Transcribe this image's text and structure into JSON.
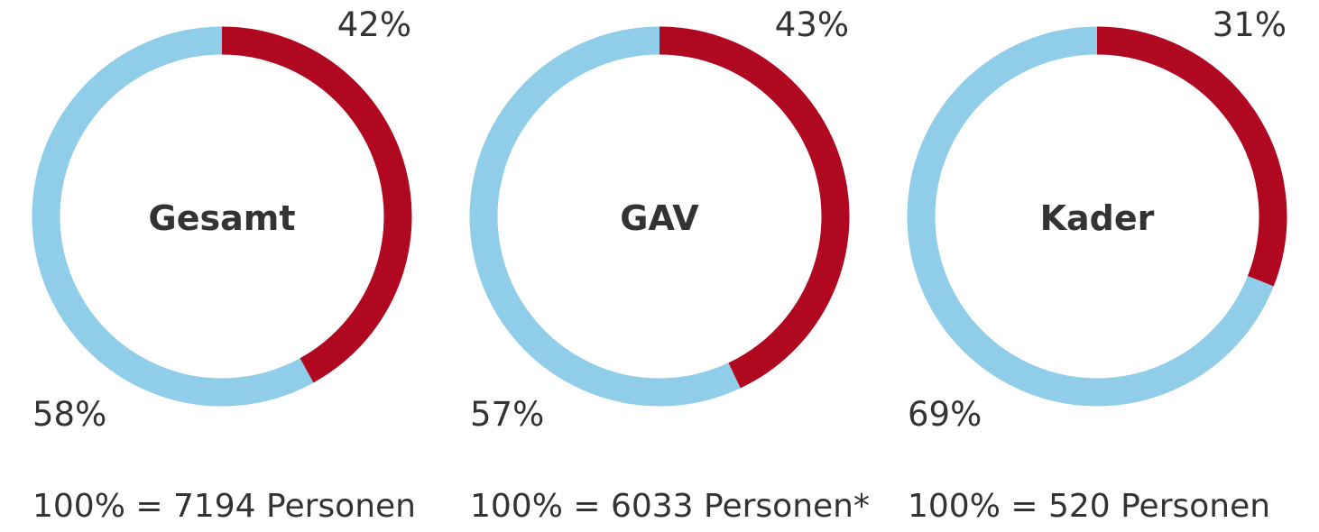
{
  "colors": {
    "red": "#b00821",
    "blue": "#8fcde9",
    "text": "#333333"
  },
  "chart_data": [
    {
      "type": "pie",
      "center_label": "Gesamt",
      "slices": [
        {
          "value": 42,
          "label": "42%",
          "color": "#b00821"
        },
        {
          "value": 58,
          "label": "58%",
          "color": "#8fcde9"
        }
      ],
      "total_label": "100% = 7194 Personen"
    },
    {
      "type": "pie",
      "center_label": "GAV",
      "slices": [
        {
          "value": 43,
          "label": "43%",
          "color": "#b00821"
        },
        {
          "value": 57,
          "label": "57%",
          "color": "#8fcde9"
        }
      ],
      "total_label": "100% = 6033 Personen*"
    },
    {
      "type": "pie",
      "center_label": "Kader",
      "slices": [
        {
          "value": 31,
          "label": "31%",
          "color": "#b00821"
        },
        {
          "value": 69,
          "label": "69%",
          "color": "#8fcde9"
        }
      ],
      "total_label": "100% = 520 Personen"
    }
  ]
}
